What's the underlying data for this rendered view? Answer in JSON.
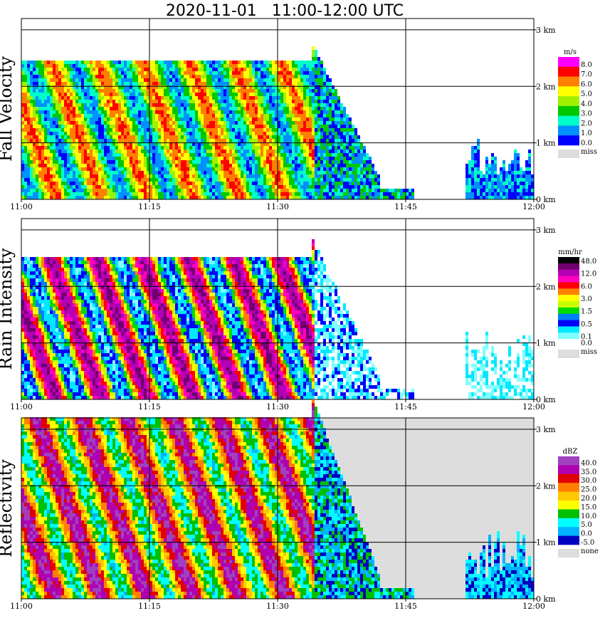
{
  "title": "2020-11-01   11:00-12:00 UTC",
  "colors": {
    "missing": "#dddddd",
    "grid": "#000000"
  },
  "chart_data": [
    {
      "type": "heatmap",
      "panel": "Fall Velocity",
      "ylabel": "Fall Velocity",
      "unit": "m/s",
      "x_ticks": [
        "11:00",
        "11:15",
        "11:30",
        "11:45",
        "12:00"
      ],
      "y_ticks": [
        "3 km",
        "2 km",
        "1 km",
        "0 km"
      ],
      "legend": [
        {
          "label": "8.0",
          "color": "#ff00ff"
        },
        {
          "label": "7.0",
          "color": "#ff0000"
        },
        {
          "label": "6.0",
          "color": "#ff7f00"
        },
        {
          "label": "5.0",
          "color": "#ffff00"
        },
        {
          "label": "4.0",
          "color": "#a0f000"
        },
        {
          "label": "3.0",
          "color": "#00c800"
        },
        {
          "label": "2.0",
          "color": "#00ffc8"
        },
        {
          "label": "1.0",
          "color": "#0090ff"
        },
        {
          "label": "0.0",
          "color": "#0000ff"
        },
        {
          "label": "miss",
          "color": "#dddddd"
        }
      ],
      "background": "#ffffff",
      "echo_top_km": 2.4,
      "rain_end": "11:38",
      "late_echo_start": "11:52"
    },
    {
      "type": "heatmap",
      "panel": "Rain Intensity",
      "ylabel": "Rain Intensity",
      "unit": "mm/hr",
      "x_ticks": [
        "11:00",
        "11:15",
        "11:30",
        "11:45",
        "12:00"
      ],
      "y_ticks": [
        "3 km",
        "2 km",
        "1 km",
        "0 km"
      ],
      "legend": [
        {
          "label": "48.0",
          "color": "#000000"
        },
        {
          "label": "",
          "color": "#700070"
        },
        {
          "label": "12.0",
          "color": "#b400b4"
        },
        {
          "label": "",
          "color": "#ff00c0"
        },
        {
          "label": "6.0",
          "color": "#ff0000"
        },
        {
          "label": "",
          "color": "#ff8000"
        },
        {
          "label": "3.0",
          "color": "#ffff00"
        },
        {
          "label": "",
          "color": "#c8ff00"
        },
        {
          "label": "1.5",
          "color": "#00dc00"
        },
        {
          "label": "",
          "color": "#0080ff"
        },
        {
          "label": "0.5",
          "color": "#0000ff"
        },
        {
          "label": "",
          "color": "#00e8ff"
        },
        {
          "label": "0.1",
          "color": "#80ffff"
        },
        {
          "label": "0.0",
          "color": "#ffffff"
        },
        {
          "label": "miss",
          "color": "#dddddd"
        }
      ],
      "background": "#ffffff",
      "echo_top_km": 2.5,
      "rain_end": "11:38",
      "late_echo_start": "11:52"
    },
    {
      "type": "heatmap",
      "panel": "Reflectivity",
      "ylabel": "Reflectivity",
      "unit": "dBZ",
      "x_ticks": [
        "11:00",
        "11:15",
        "11:30",
        "11:45",
        "12:00"
      ],
      "y_ticks": [
        "3 km",
        "2 km",
        "1 km",
        "0 km"
      ],
      "legend": [
        {
          "label": "40.0",
          "color": "#a040c0"
        },
        {
          "label": "35.0",
          "color": "#b000b0"
        },
        {
          "label": "30.0",
          "color": "#e00000"
        },
        {
          "label": "25.0",
          "color": "#ff8000"
        },
        {
          "label": "20.0",
          "color": "#ffc800"
        },
        {
          "label": "15.0",
          "color": "#ffff00"
        },
        {
          "label": "10.0",
          "color": "#00c000"
        },
        {
          "label": "5.0",
          "color": "#00ffff"
        },
        {
          "label": "0.0",
          "color": "#00b4ff"
        },
        {
          "label": "-5.0",
          "color": "#0000c0"
        },
        {
          "label": "none",
          "color": "#dddddd"
        }
      ],
      "background": "#dddddd",
      "echo_top_km": 3.2,
      "rain_end": "11:38",
      "late_echo_start": "11:52"
    }
  ]
}
